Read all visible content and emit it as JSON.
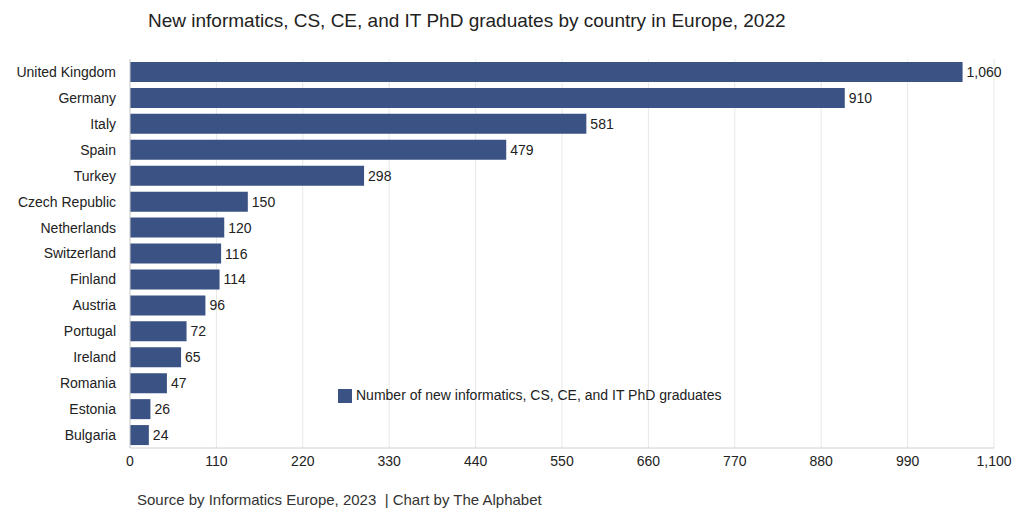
{
  "chart_data": {
    "type": "bar",
    "title": "New informatics, CS, CE, and IT PhD graduates by country in Europe, 2022",
    "source": "Source by Informatics Europe, 2023  | Chart by The Alphabet",
    "orientation": "horizontal",
    "categories": [
      "United Kingdom",
      "Germany",
      "Italy",
      "Spain",
      "Turkey",
      "Czech Republic",
      "Netherlands",
      "Switzerland",
      "Finland",
      "Austria",
      "Portugal",
      "Ireland",
      "Romania",
      "Estonia",
      "Bulgaria"
    ],
    "series": [
      {
        "name": "Number of new informatics, CS, CE, and IT PhD graduates",
        "color": "#3b5284",
        "values": [
          1060,
          910,
          581,
          479,
          298,
          150,
          120,
          116,
          114,
          96,
          72,
          65,
          47,
          26,
          24
        ],
        "value_labels": [
          "1,060",
          "910",
          "581",
          "479",
          "298",
          "150",
          "120",
          "116",
          "114",
          "96",
          "72",
          "65",
          "47",
          "26",
          "24"
        ]
      }
    ],
    "xlim": [
      0,
      1100
    ],
    "xticks": [
      0,
      110,
      220,
      330,
      440,
      550,
      660,
      770,
      880,
      990,
      {
        "value": 1100,
        "label": "1,100"
      }
    ],
    "grid": true,
    "data_labels": true,
    "legend": "lower center"
  }
}
